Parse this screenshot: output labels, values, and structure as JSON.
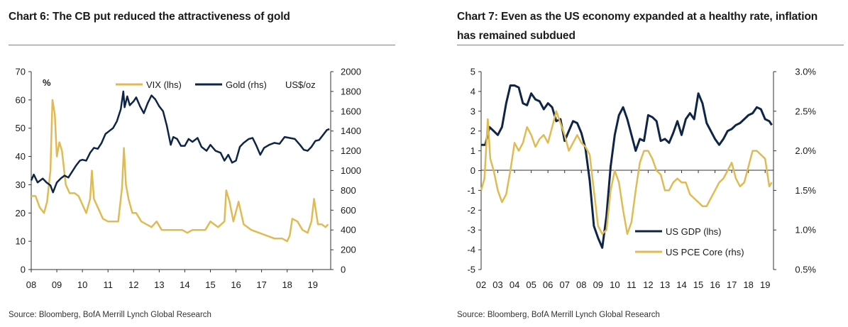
{
  "colors": {
    "gold": "#E0BA53",
    "navy": "#0E2547",
    "rule": "#6a8799"
  },
  "chart_data": [
    {
      "type": "line",
      "title": "Chart 6: The CB put reduced the attractiveness of gold",
      "source": "Source: Bloomberg, BofA Merrill Lynch Global Research",
      "left_axis_unit": "%",
      "right_axis_unit": "US$/oz",
      "x_ticks": [
        "08",
        "09",
        "10",
        "11",
        "12",
        "13",
        "14",
        "15",
        "16",
        "17",
        "18",
        "19"
      ],
      "xlim": [
        2008.0,
        2019.7
      ],
      "ylim_left": [
        0,
        70
      ],
      "ylim_right": [
        0,
        2000
      ],
      "yticks_left": [
        "0",
        "10",
        "20",
        "30",
        "40",
        "50",
        "60",
        "70"
      ],
      "yticks_right": [
        "0",
        "200",
        "400",
        "600",
        "800",
        "1000",
        "1200",
        "1400",
        "1600",
        "1800",
        "2000"
      ],
      "legend_position": "top",
      "grid": false,
      "series": [
        {
          "name": "VIX (lhs)",
          "axis": "left",
          "color": "#E0BA53",
          "x": [
            2008.0,
            2008.17,
            2008.33,
            2008.5,
            2008.62,
            2008.75,
            2008.83,
            2008.92,
            2009.0,
            2009.1,
            2009.2,
            2009.35,
            2009.5,
            2009.7,
            2009.85,
            2010.0,
            2010.15,
            2010.3,
            2010.37,
            2010.45,
            2010.6,
            2010.8,
            2011.0,
            2011.2,
            2011.4,
            2011.55,
            2011.62,
            2011.7,
            2011.8,
            2011.95,
            2012.1,
            2012.3,
            2012.5,
            2012.7,
            2012.9,
            2013.1,
            2013.4,
            2013.6,
            2013.9,
            2014.1,
            2014.3,
            2014.6,
            2014.8,
            2015.0,
            2015.3,
            2015.55,
            2015.62,
            2015.75,
            2015.9,
            2016.1,
            2016.3,
            2016.6,
            2016.9,
            2017.2,
            2017.5,
            2017.8,
            2018.0,
            2018.1,
            2018.2,
            2018.4,
            2018.6,
            2018.8,
            2018.95,
            2019.05,
            2019.2,
            2019.35,
            2019.5,
            2019.6
          ],
          "values": [
            26,
            26,
            22,
            20,
            24,
            35,
            60,
            55,
            40,
            45,
            42,
            30,
            27,
            27,
            26,
            23,
            20,
            25,
            35,
            25,
            22,
            18,
            17,
            17,
            17,
            29,
            43,
            30,
            25,
            20,
            20,
            17,
            16,
            15,
            17,
            14,
            14,
            14,
            14,
            13,
            14,
            14,
            14,
            17,
            15,
            17,
            28,
            24,
            17,
            24,
            16,
            14,
            13,
            12,
            11,
            11,
            10,
            12,
            18,
            17,
            14,
            13,
            17,
            25,
            16,
            16,
            15,
            16
          ]
        },
        {
          "name": "Gold (rhs)",
          "axis": "right",
          "color": "#0E2547",
          "x": [
            2008.0,
            2008.1,
            2008.25,
            2008.45,
            2008.6,
            2008.75,
            2008.85,
            2009.0,
            2009.15,
            2009.3,
            2009.45,
            2009.6,
            2009.75,
            2009.9,
            2010.0,
            2010.15,
            2010.3,
            2010.45,
            2010.6,
            2010.75,
            2010.9,
            2011.05,
            2011.2,
            2011.35,
            2011.5,
            2011.6,
            2011.65,
            2011.75,
            2011.85,
            2012.0,
            2012.1,
            2012.25,
            2012.4,
            2012.55,
            2012.7,
            2012.85,
            2013.0,
            2013.15,
            2013.3,
            2013.45,
            2013.55,
            2013.7,
            2013.85,
            2014.0,
            2014.15,
            2014.3,
            2014.5,
            2014.65,
            2014.85,
            2015.0,
            2015.2,
            2015.4,
            2015.55,
            2015.7,
            2015.85,
            2016.0,
            2016.15,
            2016.3,
            2016.5,
            2016.65,
            2016.8,
            2016.95,
            2017.1,
            2017.3,
            2017.5,
            2017.7,
            2017.9,
            2018.1,
            2018.3,
            2018.5,
            2018.65,
            2018.8,
            2018.95,
            2019.1,
            2019.25,
            2019.4,
            2019.55,
            2019.65
          ],
          "values": [
            900,
            960,
            880,
            920,
            880,
            850,
            780,
            880,
            920,
            950,
            930,
            990,
            1050,
            1100,
            1110,
            1100,
            1180,
            1230,
            1220,
            1280,
            1370,
            1400,
            1430,
            1500,
            1620,
            1800,
            1640,
            1750,
            1660,
            1700,
            1740,
            1650,
            1580,
            1680,
            1760,
            1720,
            1650,
            1600,
            1450,
            1260,
            1340,
            1320,
            1250,
            1250,
            1320,
            1290,
            1330,
            1240,
            1200,
            1260,
            1200,
            1180,
            1100,
            1160,
            1080,
            1100,
            1240,
            1280,
            1320,
            1330,
            1250,
            1160,
            1230,
            1260,
            1280,
            1270,
            1340,
            1330,
            1320,
            1260,
            1210,
            1200,
            1240,
            1300,
            1310,
            1360,
            1410,
            1420
          ]
        }
      ]
    },
    {
      "type": "line",
      "title": "Chart 7: Even as the US economy expanded at a healthy rate, inflation has remained subdued",
      "source": "Source: Bloomberg, BofA Merrill Lynch Global Research",
      "x_ticks": [
        "02",
        "03",
        "04",
        "05",
        "06",
        "07",
        "08",
        "09",
        "10",
        "11",
        "12",
        "13",
        "14",
        "15",
        "16",
        "17",
        "18",
        "19"
      ],
      "xlim": [
        2002.0,
        2019.5
      ],
      "ylim_left": [
        -5,
        5
      ],
      "ylim_right": [
        0.5,
        3.0
      ],
      "yticks_left": [
        "-5",
        "-4",
        "-3",
        "-2",
        "-1",
        "0",
        "1",
        "2",
        "3",
        "4",
        "5"
      ],
      "yticks_right": [
        "0.5%",
        "1.0%",
        "1.5%",
        "2.0%",
        "2.5%",
        "3.0%"
      ],
      "legend_position": "bottom-right",
      "grid": false,
      "series": [
        {
          "name": "US GDP (lhs)",
          "axis": "left",
          "color": "#0E2547",
          "x": [
            2002.0,
            2002.25,
            2002.5,
            2002.75,
            2003.0,
            2003.25,
            2003.5,
            2003.75,
            2004.0,
            2004.25,
            2004.5,
            2004.75,
            2005.0,
            2005.25,
            2005.5,
            2005.75,
            2006.0,
            2006.25,
            2006.5,
            2006.75,
            2007.0,
            2007.25,
            2007.5,
            2007.75,
            2008.0,
            2008.25,
            2008.5,
            2008.75,
            2009.0,
            2009.25,
            2009.5,
            2009.75,
            2010.0,
            2010.25,
            2010.5,
            2010.75,
            2011.0,
            2011.25,
            2011.5,
            2011.75,
            2012.0,
            2012.25,
            2012.5,
            2012.75,
            2013.0,
            2013.25,
            2013.5,
            2013.75,
            2014.0,
            2014.25,
            2014.5,
            2014.75,
            2015.0,
            2015.25,
            2015.5,
            2015.75,
            2016.0,
            2016.25,
            2016.5,
            2016.75,
            2017.0,
            2017.25,
            2017.5,
            2017.75,
            2018.0,
            2018.25,
            2018.5,
            2018.75,
            2019.0,
            2019.25,
            2019.4
          ],
          "values": [
            1.3,
            1.3,
            2.2,
            2.0,
            1.8,
            2.2,
            3.4,
            4.3,
            4.3,
            4.2,
            3.4,
            3.3,
            3.9,
            3.6,
            3.5,
            3.1,
            3.4,
            3.2,
            2.5,
            2.6,
            1.5,
            2.0,
            2.5,
            2.4,
            1.9,
            1.1,
            -0.5,
            -2.8,
            -3.4,
            -3.9,
            -2.3,
            0.2,
            1.8,
            2.8,
            3.2,
            2.6,
            1.8,
            1.0,
            1.6,
            1.5,
            2.8,
            2.7,
            2.5,
            1.5,
            1.6,
            1.4,
            1.9,
            2.5,
            1.8,
            2.6,
            2.9,
            2.6,
            3.9,
            3.4,
            2.4,
            2.0,
            1.6,
            1.3,
            1.6,
            2.0,
            2.1,
            2.3,
            2.4,
            2.6,
            2.8,
            2.9,
            3.2,
            3.1,
            2.6,
            2.5,
            2.3
          ]
        },
        {
          "name": "US PCE Core (rhs)",
          "axis": "right",
          "color": "#E0BA53",
          "x": [
            2002.0,
            2002.2,
            2002.4,
            2002.55,
            2002.75,
            2003.0,
            2003.25,
            2003.5,
            2003.75,
            2004.0,
            2004.25,
            2004.5,
            2004.75,
            2005.0,
            2005.25,
            2005.5,
            2005.75,
            2006.0,
            2006.25,
            2006.5,
            2006.75,
            2007.0,
            2007.25,
            2007.5,
            2007.75,
            2008.0,
            2008.25,
            2008.5,
            2008.75,
            2009.0,
            2009.25,
            2009.5,
            2009.75,
            2010.0,
            2010.25,
            2010.5,
            2010.75,
            2011.0,
            2011.25,
            2011.5,
            2011.75,
            2012.0,
            2012.25,
            2012.5,
            2012.75,
            2013.0,
            2013.25,
            2013.5,
            2013.75,
            2014.0,
            2014.25,
            2014.5,
            2014.75,
            2015.0,
            2015.25,
            2015.5,
            2015.75,
            2016.0,
            2016.25,
            2016.5,
            2016.75,
            2017.0,
            2017.25,
            2017.5,
            2017.75,
            2018.0,
            2018.25,
            2018.5,
            2018.75,
            2019.0,
            2019.25,
            2019.4
          ],
          "values": [
            1.5,
            1.65,
            2.4,
            1.9,
            1.75,
            1.5,
            1.35,
            1.45,
            1.75,
            2.1,
            2.0,
            2.1,
            2.3,
            2.2,
            2.05,
            2.15,
            2.2,
            2.1,
            2.3,
            2.5,
            2.35,
            2.2,
            2.0,
            2.1,
            2.2,
            2.1,
            2.05,
            1.95,
            1.5,
            1.05,
            0.95,
            1.0,
            1.5,
            1.75,
            1.6,
            1.25,
            0.95,
            1.1,
            1.5,
            1.85,
            2.0,
            2.0,
            1.9,
            1.75,
            1.7,
            1.5,
            1.5,
            1.6,
            1.65,
            1.6,
            1.6,
            1.45,
            1.4,
            1.35,
            1.3,
            1.3,
            1.4,
            1.5,
            1.6,
            1.65,
            1.75,
            1.85,
            1.65,
            1.55,
            1.6,
            1.8,
            2.0,
            2.0,
            1.95,
            1.9,
            1.55,
            1.6
          ]
        }
      ]
    }
  ]
}
